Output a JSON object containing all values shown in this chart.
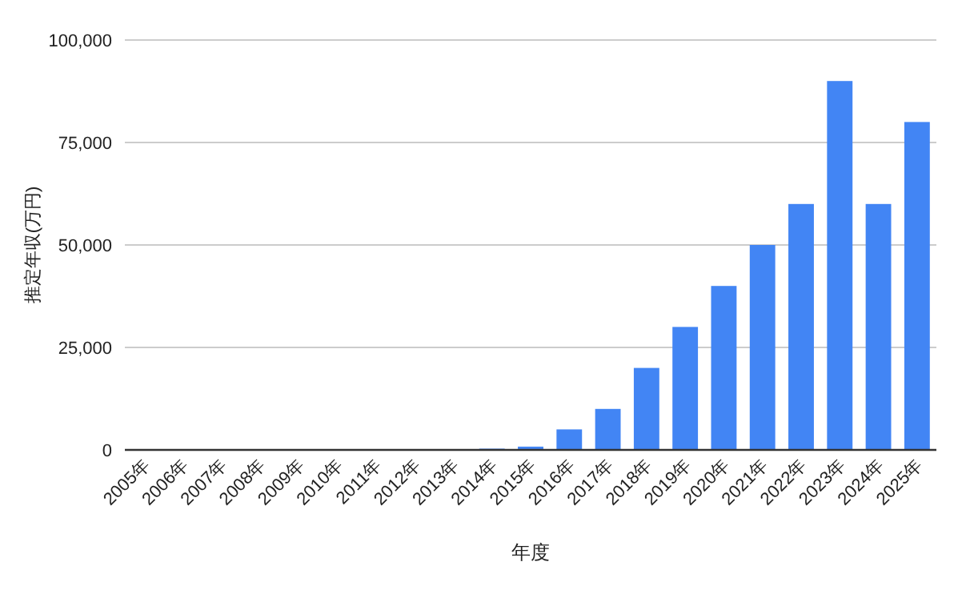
{
  "chart_data": {
    "type": "bar",
    "xlabel": "年度",
    "ylabel": "推定年収(万円)",
    "categories": [
      "2005年",
      "2006年",
      "2007年",
      "2008年",
      "2009年",
      "2010年",
      "2011年",
      "2012年",
      "2013年",
      "2014年",
      "2015年",
      "2016年",
      "2017年",
      "2018年",
      "2019年",
      "2020年",
      "2021年",
      "2022年",
      "2023年",
      "2024年",
      "2025年"
    ],
    "values": [
      0,
      0,
      0,
      0,
      0,
      0,
      0,
      0,
      0,
      300,
      800,
      5000,
      10000,
      20000,
      30000,
      40000,
      50000,
      60000,
      90000,
      60000,
      80000
    ],
    "color": "#4285f4",
    "ylim": [
      0,
      100000
    ],
    "yticks": [
      {
        "value": 0,
        "label": "0"
      },
      {
        "value": 25000,
        "label": "25,000"
      },
      {
        "value": 50000,
        "label": "50,000"
      },
      {
        "value": 75000,
        "label": "75,000"
      },
      {
        "value": 100000,
        "label": "100,000"
      }
    ],
    "grid": "y"
  }
}
